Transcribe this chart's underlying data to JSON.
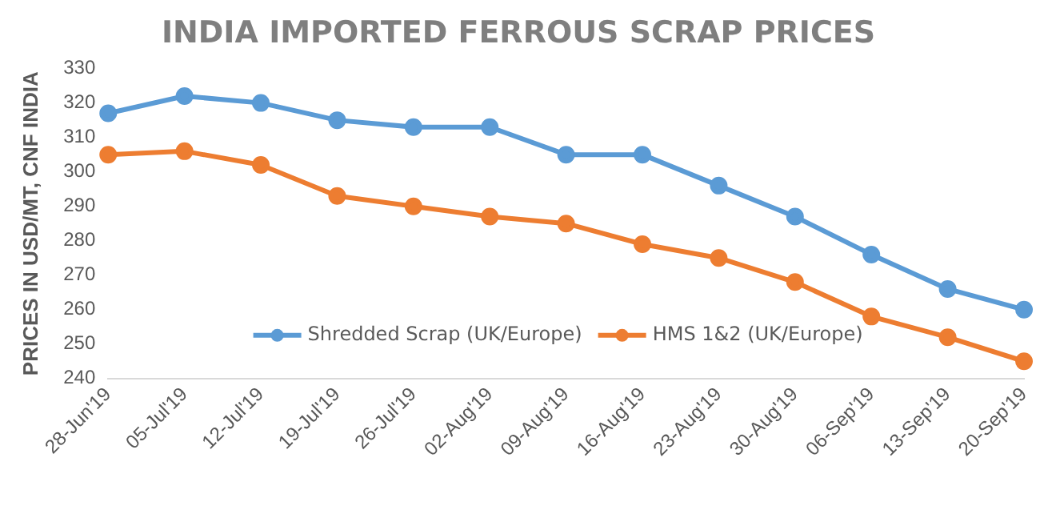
{
  "chart_data": {
    "type": "line",
    "title": "INDIA IMPORTED FERROUS SCRAP PRICES",
    "ylabel": "PRICES IN USD/MT, CNF INDIA",
    "categories": [
      "28-Jun'19",
      "05-Jul'19",
      "12-Jul'19",
      "19-Jul'19",
      "26-Jul'19",
      "02-Aug'19",
      "09-Aug'19",
      "16-Aug'19",
      "23-Aug'19",
      "30-Aug'19",
      "06-Sep'19",
      "13-Sep'19",
      "20-Sep'19"
    ],
    "series": [
      {
        "name": "Shredded Scrap (UK/Europe)",
        "color": "#5b9bd5",
        "values": [
          317,
          322,
          320,
          315,
          313,
          313,
          305,
          305,
          296,
          287,
          276,
          266,
          260
        ]
      },
      {
        "name": "HMS 1&2 (UK/Europe)",
        "color": "#ed7d31",
        "values": [
          305,
          306,
          302,
          293,
          290,
          287,
          285,
          279,
          275,
          268,
          258,
          252,
          245
        ]
      }
    ],
    "ylim": [
      240,
      330
    ],
    "yticks": [
      240,
      250,
      260,
      270,
      280,
      290,
      300,
      310,
      320,
      330
    ],
    "grid": false,
    "legend": "bottom",
    "marker": "circle",
    "line_style": "solid"
  }
}
